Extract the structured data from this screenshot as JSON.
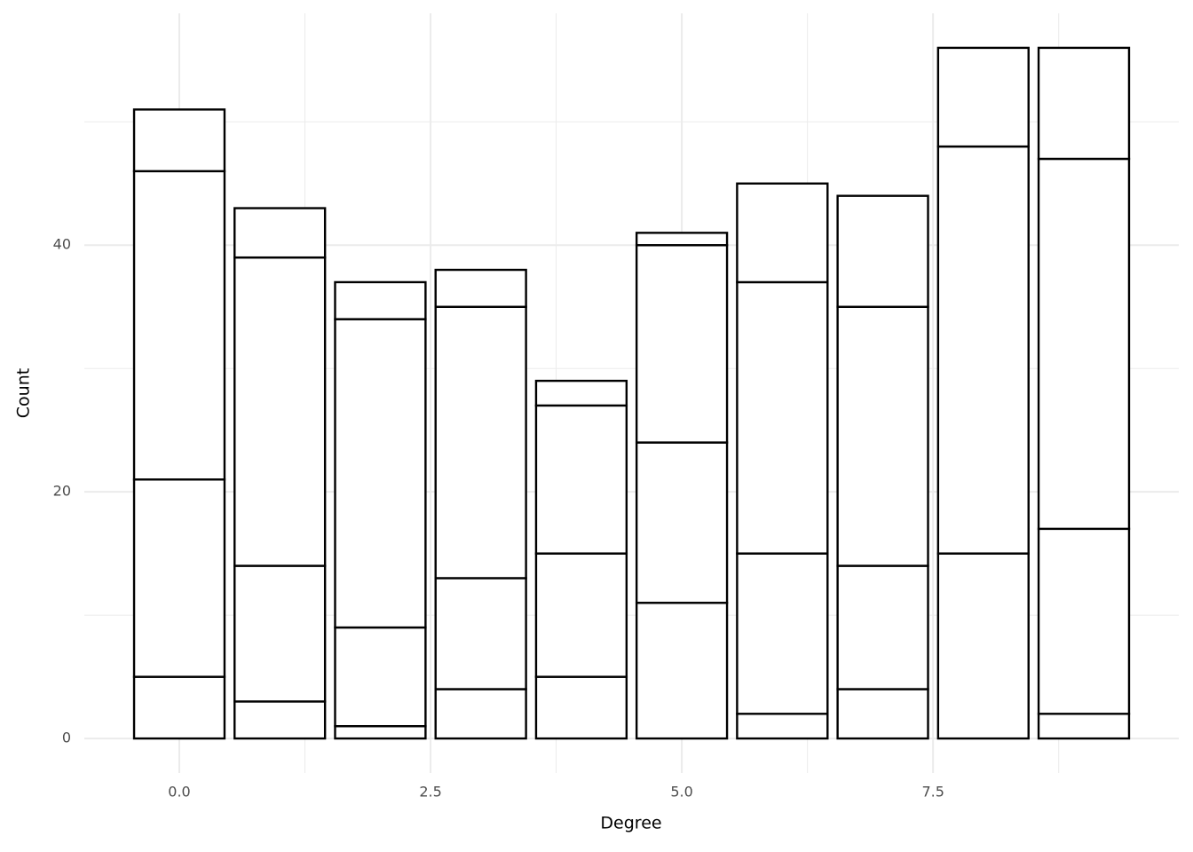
{
  "chart_data": {
    "type": "stacked_bar",
    "x_label": "Degree",
    "y_label": "Count",
    "x": [
      0,
      1,
      2,
      3,
      4,
      5,
      6,
      7,
      8,
      9
    ],
    "series": [
      {
        "values": [
          5,
          3,
          1,
          4,
          5,
          11,
          2,
          4,
          15,
          2
        ]
      },
      {
        "values": [
          16,
          11,
          8,
          9,
          10,
          13,
          13,
          10,
          33,
          15
        ]
      },
      {
        "values": [
          25,
          25,
          25,
          22,
          12,
          16,
          22,
          21,
          8,
          30
        ]
      },
      {
        "values": [
          5,
          4,
          3,
          3,
          2,
          1,
          8,
          9,
          null,
          9
        ]
      }
    ],
    "bar_width": 0.9,
    "fill": "#ffffff",
    "stroke": "#000000",
    "xlim": [
      -0.945,
      9.945
    ],
    "ylim": [
      -2.8,
      58.8
    ],
    "xticks": [
      {
        "value": 0,
        "label": "0.0"
      },
      2.5,
      {
        "value": 5,
        "label": "5.0"
      },
      7.5
    ],
    "x_minor_ticks": [
      1.25,
      3.75,
      6.25,
      8.75
    ],
    "yticks": [
      0,
      20,
      40
    ],
    "y_minor_ticks": [
      10,
      30,
      50
    ],
    "grid": true
  }
}
